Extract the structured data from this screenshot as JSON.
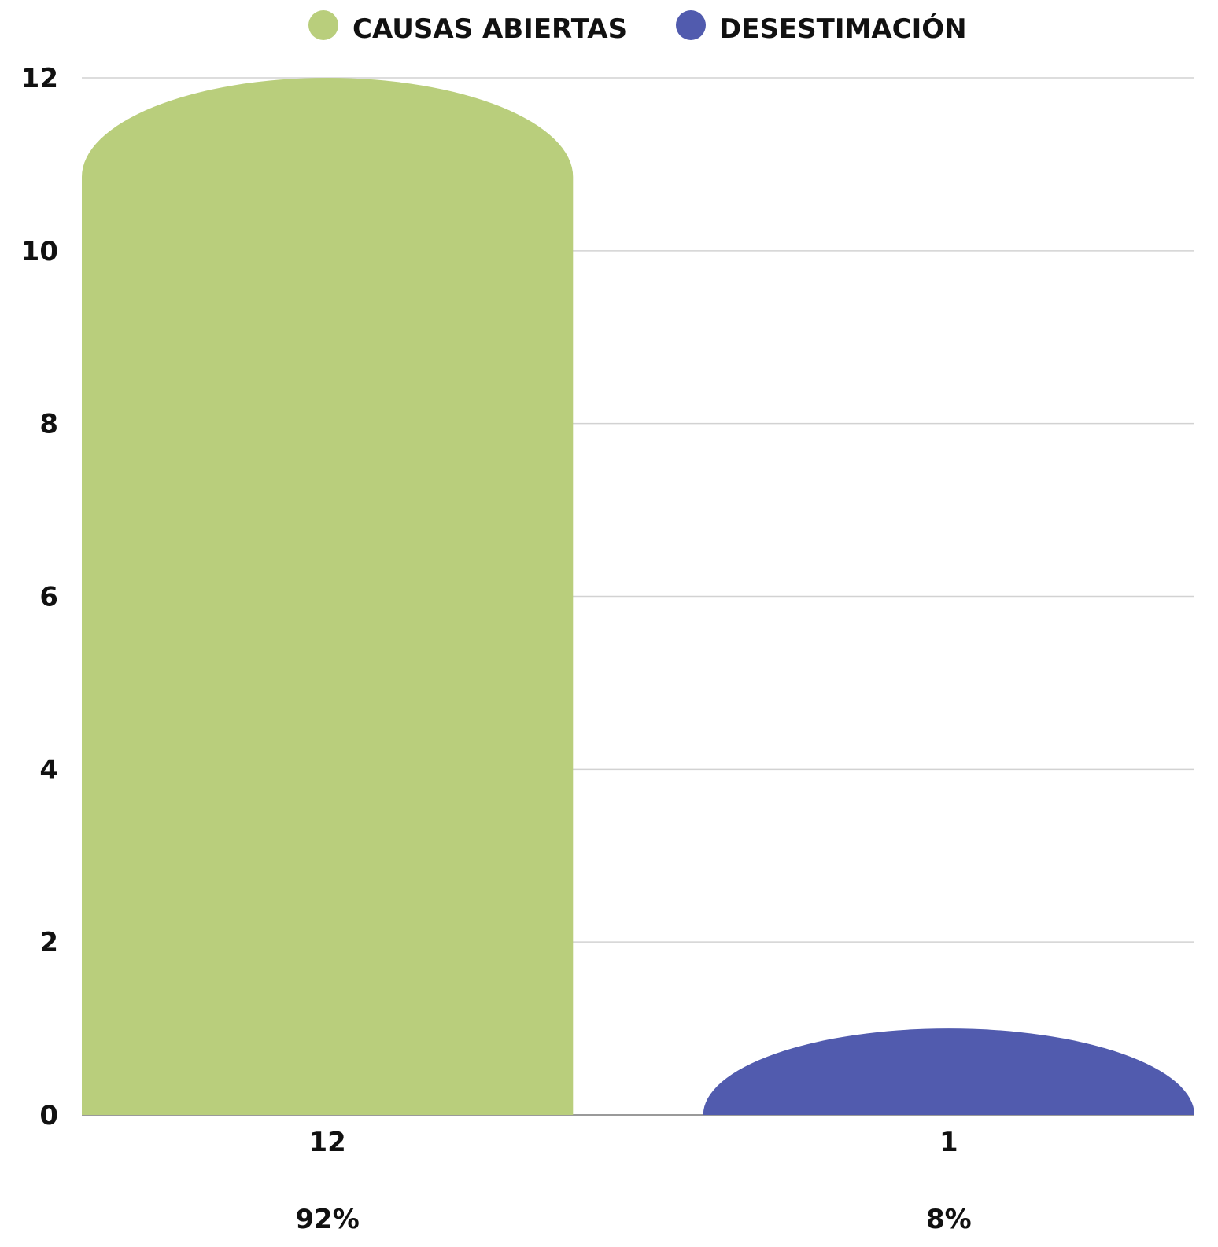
{
  "chart_data": {
    "type": "bar",
    "categories": [
      "CAUSAS ABIERTAS",
      "DESESTIMACIÓN"
    ],
    "values": [
      12,
      1
    ],
    "value_labels": [
      "12",
      "1"
    ],
    "percent_labels": [
      "92%",
      "8%"
    ],
    "colors": [
      "#b9ce7c",
      "#515bae"
    ],
    "ylim": [
      0,
      12
    ],
    "yticks": [
      0,
      2,
      4,
      6,
      8,
      10,
      12
    ],
    "grid": true,
    "legend": {
      "placement": "top-center",
      "entries": [
        {
          "label": "CAUSAS ABIERTAS",
          "color": "#b9ce7c"
        },
        {
          "label": "DESESTIMACIÓN",
          "color": "#515bae"
        }
      ]
    }
  }
}
